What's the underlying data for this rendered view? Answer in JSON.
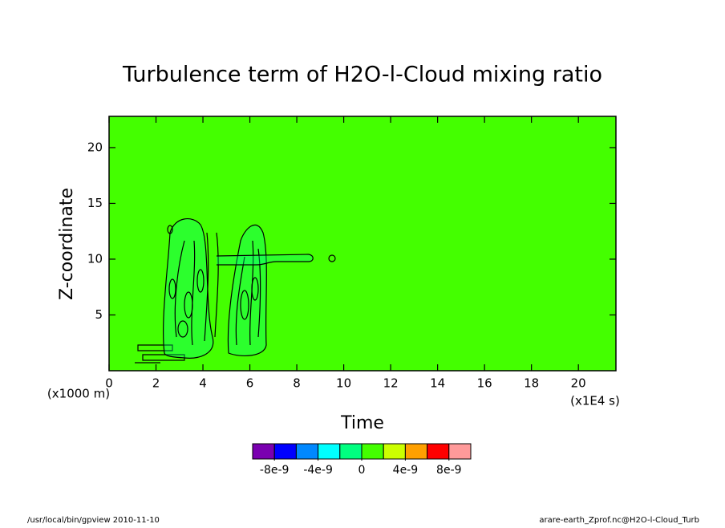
{
  "chart_data": {
    "type": "contour",
    "title": "Turbulence term of H2O-l-Cloud mixing ratio",
    "x_label": "Time",
    "y_label": "Z-coordinate",
    "x_unit": "(x1E4 s)",
    "y_unit": "(x1000 m)",
    "xlim": [
      0,
      21.6
    ],
    "ylim": [
      0,
      22.8
    ],
    "xticks": [
      0,
      2,
      4,
      6,
      8,
      10,
      12,
      14,
      16,
      18,
      20
    ],
    "yticks": [
      5,
      10,
      15,
      20
    ],
    "colorbar": {
      "lim": [
        -1e-08,
        1e-08
      ],
      "colors": [
        "#7a00b0",
        "#0000ff",
        "#0088ff",
        "#00ffff",
        "#00ff80",
        "#44ff00",
        "#ccff00",
        "#ffa000",
        "#ff0000",
        "#ff9a9a"
      ],
      "ticks": [
        -8e-09,
        -4e-09,
        0,
        4e-09,
        8e-09
      ]
    },
    "footer_left": "/usr/local/bin/gpview  2010-11-10",
    "footer_right": "arare-earth_Zprof.nc@H2O-l-Cloud_Turb"
  }
}
